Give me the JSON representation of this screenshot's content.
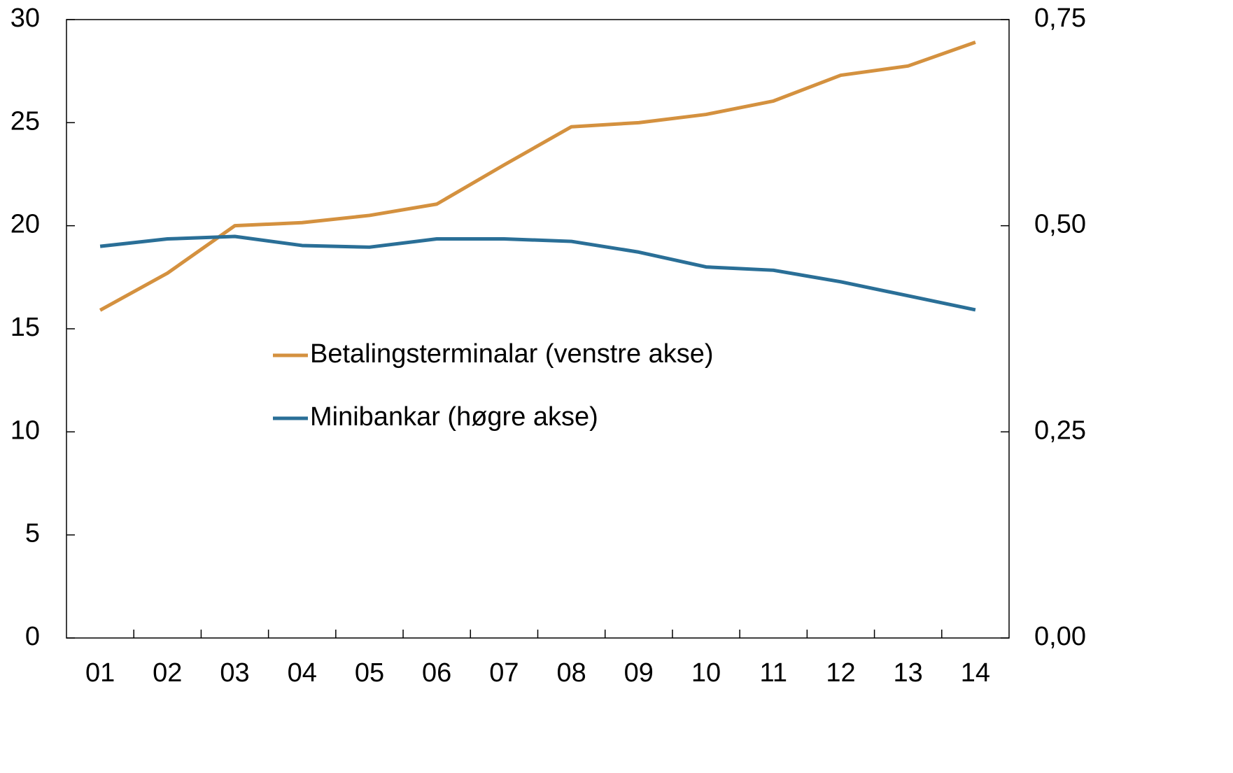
{
  "chart_data": {
    "type": "line",
    "categories": [
      "01",
      "02",
      "03",
      "04",
      "05",
      "06",
      "07",
      "08",
      "09",
      "10",
      "11",
      "12",
      "13",
      "14"
    ],
    "series": [
      {
        "name": "Betalingsterminalar (venstre akse)",
        "color": "#d4913f",
        "axis": "y",
        "values": [
          15.9,
          17.7,
          20.0,
          20.15,
          20.5,
          21.05,
          22.95,
          24.8,
          25.0,
          25.4,
          26.05,
          27.3,
          27.75,
          28.9
        ]
      },
      {
        "name": "Minibankar (høgre akse)",
        "color": "#2a6f97",
        "axis": "y2",
        "values": [
          0.475,
          0.484,
          0.487,
          0.476,
          0.474,
          0.484,
          0.484,
          0.481,
          0.468,
          0.45,
          0.446,
          0.432,
          0.415,
          0.398
        ]
      }
    ],
    "ylim": [
      0,
      30
    ],
    "yticks": [
      0,
      5,
      10,
      15,
      20,
      25,
      30
    ],
    "y2lim": [
      0,
      0.75
    ],
    "y2ticks": [
      {
        "value": 0,
        "label": "0,00"
      },
      {
        "value": 0.25,
        "label": "0,25"
      },
      {
        "value": 0.5,
        "label": "0,50"
      },
      {
        "value": 0.75,
        "label": "0,75"
      }
    ]
  }
}
